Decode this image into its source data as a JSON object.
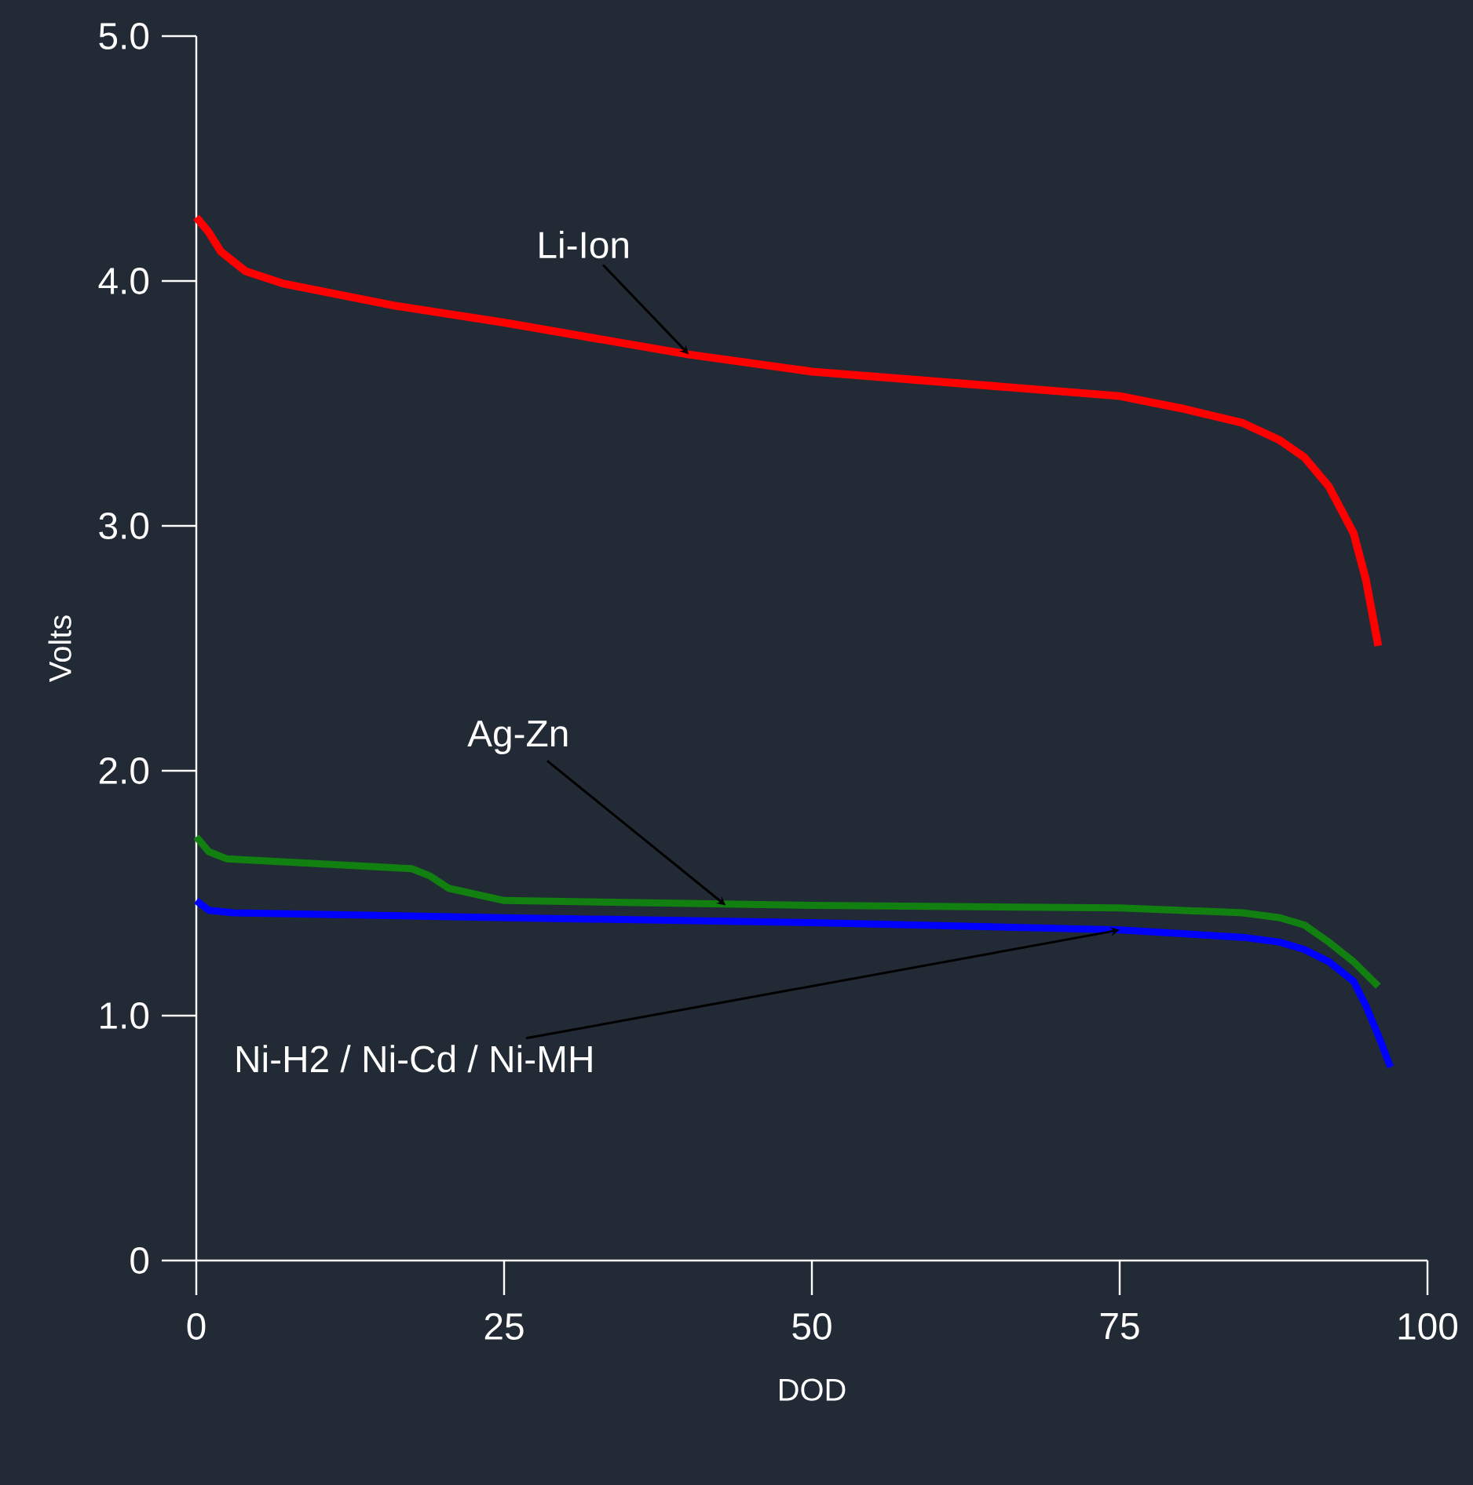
{
  "chart_data": {
    "type": "line",
    "xlabel": "DOD",
    "ylabel": "Volts",
    "xlim": [
      0,
      100
    ],
    "ylim": [
      0,
      5
    ],
    "xticks": [
      0,
      25,
      50,
      75,
      100
    ],
    "yticks": [
      0,
      {
        "value": 1,
        "label": "1.0"
      },
      {
        "value": 2,
        "label": "2.0"
      },
      {
        "value": 3,
        "label": "3.0"
      },
      {
        "value": 4,
        "label": "4.0"
      },
      {
        "value": 5,
        "label": "5.0"
      }
    ],
    "series": [
      {
        "color": "#ff0000",
        "x": [
          0,
          1,
          2,
          4,
          7,
          16,
          25,
          40,
          50,
          75,
          80,
          85,
          88,
          90,
          92,
          94,
          95,
          96
        ],
        "values": [
          4.26,
          4.2,
          4.12,
          4.04,
          3.99,
          3.9,
          3.83,
          3.7,
          3.63,
          3.53,
          3.48,
          3.42,
          3.35,
          3.28,
          3.16,
          2.97,
          2.78,
          2.51
        ]
      },
      {
        "color": "#118011",
        "x": [
          0,
          1,
          2.5,
          10,
          17.5,
          19,
          20.5,
          25,
          50,
          75,
          85,
          88,
          90,
          92,
          94,
          96
        ],
        "values": [
          1.73,
          1.67,
          1.64,
          1.62,
          1.6,
          1.57,
          1.52,
          1.47,
          1.45,
          1.44,
          1.42,
          1.4,
          1.37,
          1.3,
          1.22,
          1.12
        ]
      },
      {
        "color": "#0000ff",
        "x": [
          0,
          1,
          3,
          25,
          50,
          75,
          85,
          88,
          90,
          92,
          94,
          95,
          96,
          97
        ],
        "values": [
          1.47,
          1.43,
          1.42,
          1.4,
          1.38,
          1.35,
          1.32,
          1.3,
          1.27,
          1.22,
          1.14,
          1.04,
          0.92,
          0.79
        ]
      }
    ],
    "annotations": [
      {
        "text": "Li-Ion",
        "x": 40,
        "y": 3.7
      },
      {
        "text": "Ag-Zn",
        "x": 43,
        "y": 1.45
      },
      {
        "text": "Ni-H2 / Ni-Cd / Ni-MH",
        "x": 75,
        "y": 1.35
      }
    ]
  }
}
